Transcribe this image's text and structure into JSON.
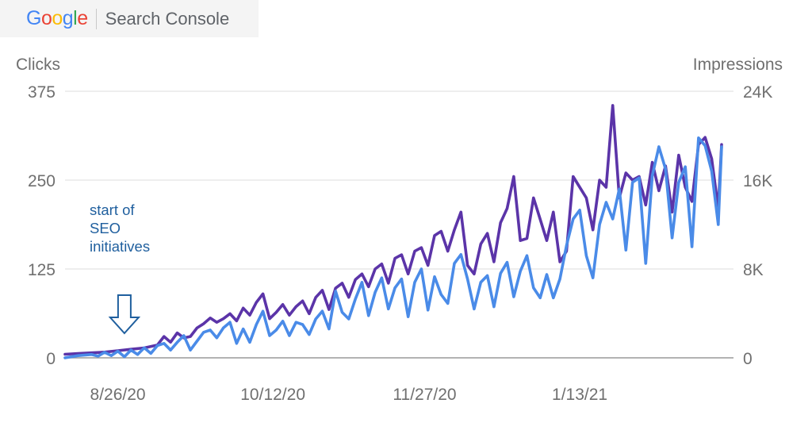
{
  "brand": {
    "logo_text": "Google",
    "logo_letter_colors": [
      "#4285F4",
      "#EA4335",
      "#FBBC05",
      "#4285F4",
      "#34A853",
      "#EA4335"
    ],
    "product": "Search Console"
  },
  "chart_data": {
    "type": "line",
    "y_left": {
      "label": "Clicks",
      "ylim": [
        0,
        375
      ],
      "ticks": [
        "375",
        "250",
        "125",
        "0"
      ]
    },
    "y_right": {
      "label": "Impressions",
      "ylim": [
        0,
        24000
      ],
      "ticks": [
        "24K",
        "16K",
        "8K",
        "0"
      ]
    },
    "x_ticks": [
      "8/26/20",
      "10/12/20",
      "11/27/20",
      "1/13/21"
    ],
    "x_tick_positions": [
      16,
      63,
      109,
      156
    ],
    "x_range": [
      0,
      199
    ],
    "grid": true,
    "legend": "none",
    "series": [
      {
        "axis": "left",
        "color": "#5b34a8",
        "points": [
          [
            0,
            5
          ],
          [
            4,
            6
          ],
          [
            8,
            7
          ],
          [
            12,
            8
          ],
          [
            16,
            10
          ],
          [
            20,
            12
          ],
          [
            24,
            14
          ],
          [
            28,
            18
          ],
          [
            30,
            30
          ],
          [
            32,
            22
          ],
          [
            34,
            35
          ],
          [
            36,
            28
          ],
          [
            38,
            30
          ],
          [
            40,
            42
          ],
          [
            42,
            48
          ],
          [
            44,
            56
          ],
          [
            46,
            50
          ],
          [
            48,
            55
          ],
          [
            50,
            62
          ],
          [
            52,
            52
          ],
          [
            54,
            70
          ],
          [
            56,
            60
          ],
          [
            58,
            78
          ],
          [
            60,
            90
          ],
          [
            62,
            55
          ],
          [
            64,
            64
          ],
          [
            66,
            75
          ],
          [
            68,
            60
          ],
          [
            70,
            72
          ],
          [
            72,
            80
          ],
          [
            74,
            62
          ],
          [
            76,
            85
          ],
          [
            78,
            95
          ],
          [
            80,
            68
          ],
          [
            82,
            98
          ],
          [
            84,
            105
          ],
          [
            86,
            85
          ],
          [
            88,
            110
          ],
          [
            90,
            118
          ],
          [
            92,
            100
          ],
          [
            94,
            125
          ],
          [
            96,
            132
          ],
          [
            98,
            105
          ],
          [
            100,
            140
          ],
          [
            102,
            145
          ],
          [
            104,
            118
          ],
          [
            106,
            150
          ],
          [
            108,
            155
          ],
          [
            110,
            130
          ],
          [
            112,
            172
          ],
          [
            114,
            178
          ],
          [
            116,
            150
          ],
          [
            118,
            180
          ],
          [
            120,
            205
          ],
          [
            122,
            130
          ],
          [
            124,
            118
          ],
          [
            126,
            160
          ],
          [
            128,
            175
          ],
          [
            130,
            135
          ],
          [
            132,
            190
          ],
          [
            134,
            210
          ],
          [
            136,
            255
          ],
          [
            138,
            165
          ],
          [
            140,
            168
          ],
          [
            142,
            225
          ],
          [
            144,
            195
          ],
          [
            146,
            165
          ],
          [
            148,
            205
          ],
          [
            150,
            135
          ],
          [
            152,
            150
          ],
          [
            154,
            255
          ],
          [
            156,
            240
          ],
          [
            158,
            225
          ],
          [
            160,
            180
          ],
          [
            162,
            250
          ],
          [
            164,
            240
          ],
          [
            166,
            355
          ],
          [
            168,
            225
          ],
          [
            170,
            260
          ],
          [
            172,
            250
          ],
          [
            174,
            255
          ],
          [
            176,
            215
          ],
          [
            178,
            275
          ],
          [
            180,
            235
          ],
          [
            182,
            270
          ],
          [
            184,
            205
          ],
          [
            186,
            285
          ],
          [
            188,
            240
          ],
          [
            190,
            220
          ],
          [
            192,
            300
          ],
          [
            194,
            310
          ],
          [
            196,
            280
          ],
          [
            198,
            210
          ],
          [
            199,
            300
          ]
        ]
      },
      {
        "axis": "right",
        "color": "#4a8be8",
        "points": [
          [
            0,
            0
          ],
          [
            4,
            200
          ],
          [
            8,
            300
          ],
          [
            10,
            150
          ],
          [
            12,
            500
          ],
          [
            14,
            200
          ],
          [
            16,
            600
          ],
          [
            18,
            100
          ],
          [
            20,
            700
          ],
          [
            22,
            300
          ],
          [
            24,
            900
          ],
          [
            26,
            400
          ],
          [
            28,
            1100
          ],
          [
            30,
            1300
          ],
          [
            32,
            700
          ],
          [
            34,
            1400
          ],
          [
            36,
            2000
          ],
          [
            38,
            700
          ],
          [
            40,
            1500
          ],
          [
            42,
            2300
          ],
          [
            44,
            2500
          ],
          [
            46,
            1800
          ],
          [
            48,
            2700
          ],
          [
            50,
            3200
          ],
          [
            52,
            1300
          ],
          [
            54,
            2600
          ],
          [
            56,
            1400
          ],
          [
            58,
            3000
          ],
          [
            60,
            4200
          ],
          [
            62,
            2000
          ],
          [
            64,
            2500
          ],
          [
            66,
            3300
          ],
          [
            68,
            2000
          ],
          [
            70,
            3200
          ],
          [
            72,
            3000
          ],
          [
            74,
            2100
          ],
          [
            76,
            3500
          ],
          [
            78,
            4200
          ],
          [
            80,
            2600
          ],
          [
            82,
            6000
          ],
          [
            84,
            4100
          ],
          [
            86,
            3500
          ],
          [
            88,
            5300
          ],
          [
            90,
            6800
          ],
          [
            92,
            3800
          ],
          [
            94,
            5900
          ],
          [
            96,
            7200
          ],
          [
            98,
            4400
          ],
          [
            100,
            6300
          ],
          [
            102,
            7100
          ],
          [
            104,
            3700
          ],
          [
            106,
            6800
          ],
          [
            108,
            8000
          ],
          [
            110,
            4300
          ],
          [
            112,
            7300
          ],
          [
            114,
            5700
          ],
          [
            116,
            4900
          ],
          [
            118,
            8500
          ],
          [
            120,
            9300
          ],
          [
            122,
            7100
          ],
          [
            124,
            4400
          ],
          [
            126,
            6800
          ],
          [
            128,
            7400
          ],
          [
            130,
            4600
          ],
          [
            132,
            7600
          ],
          [
            134,
            8600
          ],
          [
            136,
            5500
          ],
          [
            138,
            7800
          ],
          [
            140,
            9200
          ],
          [
            142,
            6300
          ],
          [
            144,
            5400
          ],
          [
            146,
            7500
          ],
          [
            148,
            5400
          ],
          [
            150,
            7100
          ],
          [
            152,
            10100
          ],
          [
            154,
            12500
          ],
          [
            156,
            13300
          ],
          [
            158,
            9200
          ],
          [
            160,
            7200
          ],
          [
            162,
            12000
          ],
          [
            164,
            14000
          ],
          [
            166,
            12500
          ],
          [
            168,
            15200
          ],
          [
            170,
            9700
          ],
          [
            172,
            15800
          ],
          [
            174,
            16200
          ],
          [
            176,
            8500
          ],
          [
            178,
            16400
          ],
          [
            180,
            19000
          ],
          [
            182,
            17000
          ],
          [
            184,
            10800
          ],
          [
            186,
            15800
          ],
          [
            188,
            17200
          ],
          [
            190,
            10000
          ],
          [
            192,
            19800
          ],
          [
            194,
            19100
          ],
          [
            196,
            16800
          ],
          [
            198,
            12000
          ],
          [
            199,
            19000
          ]
        ]
      }
    ]
  },
  "annotation": {
    "text_lines": [
      "start of",
      "SEO",
      "initiatives"
    ],
    "arrow_icon": "down-arrow-icon",
    "color": "#1f5f9e",
    "x_value": 18
  }
}
